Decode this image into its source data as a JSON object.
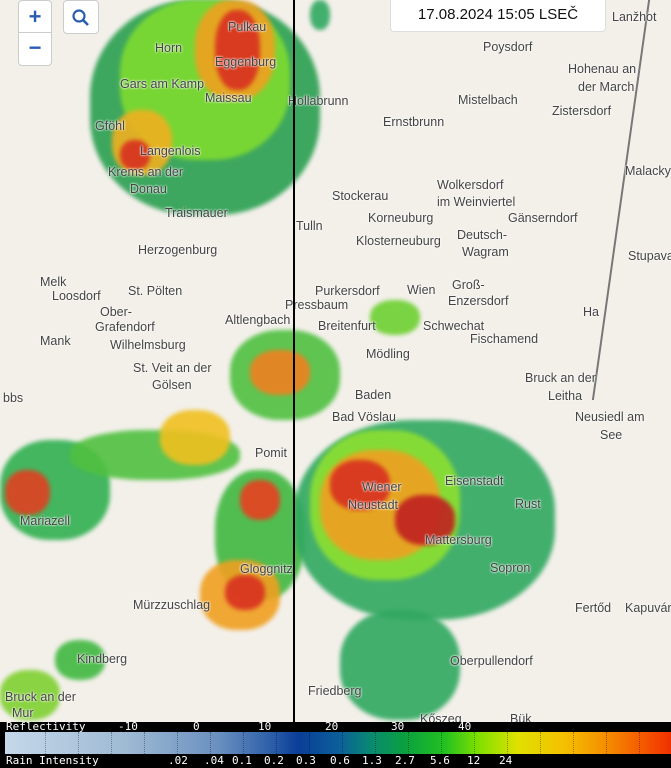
{
  "controls": {
    "zoom_in": "+",
    "zoom_out": "−",
    "search_icon": "search-icon"
  },
  "timestamp": "17.08.2024 15:05 LSEČ",
  "places": [
    "Pulkau",
    "Horn",
    "Eggenburg",
    "Maissau",
    "Gars am Kamp",
    "Hollabrunn",
    "Poysdorf",
    "Hohenau an",
    "der March",
    "Mistelbach",
    "Zistersdorf",
    "Ernstbrunn",
    "Gföhl",
    "Langenlois",
    "Krems an der",
    "Donau",
    "Malacky",
    "Stockerau",
    "Wolkersdorf",
    "im Weinviertel",
    "Traismauer",
    "Korneuburg",
    "Gänserndorf",
    "Tulln",
    "Klosterneuburg",
    "Deutsch-",
    "Wagram",
    "Herzogenburg",
    "Stupava",
    "Melk",
    "Loosdorf",
    "St. Pölten",
    "Purkersdorf",
    "Wien",
    "Groß-",
    "Enzersdorf",
    "Pressbaum",
    "Ober-",
    "Grafendorf",
    "Altlengbach",
    "Breitenfurt",
    "Schwechat",
    "Mank",
    "Wilhelmsburg",
    "Fischamend",
    "Mödling",
    "St. Veit an der",
    "Gölsen",
    "Bruck an der",
    "Leitha",
    "Baden",
    "Bad Vöslau",
    "Neusiedl am",
    "See",
    "Wiener",
    "Neustadt",
    "Eisenstadt",
    "Rust",
    "Mariazell",
    "Mattersburg",
    "Sopron",
    "Fertőd",
    "Kapuvár",
    "Mürzzuschlag",
    "Gloggnitz",
    "Kindberg",
    "Oberpullendorf",
    "Friedberg",
    "Bruck an der",
    "Mur",
    "Kőszeg",
    "Bük",
    "Lanžhot",
    "Thaya",
    "bbs",
    "Ha",
    "Pomit"
  ],
  "legend": {
    "reflectivity_label": "Reflectivity",
    "reflectivity_ticks": [
      "-10",
      "0",
      "10",
      "20",
      "30",
      "40"
    ],
    "rain_label": "Rain Intensity",
    "rain_ticks": [
      ".02",
      ".04",
      "0.1",
      "0.2",
      "0.3",
      "0.6",
      "1.3",
      "2.7",
      "5.6",
      "12",
      "24"
    ]
  },
  "colors": {
    "radar_low": "#1a9c50",
    "radar_mid": "#7fe030",
    "radar_high": "#f0a020",
    "radar_peak": "#d82020",
    "divider": "#000000"
  }
}
